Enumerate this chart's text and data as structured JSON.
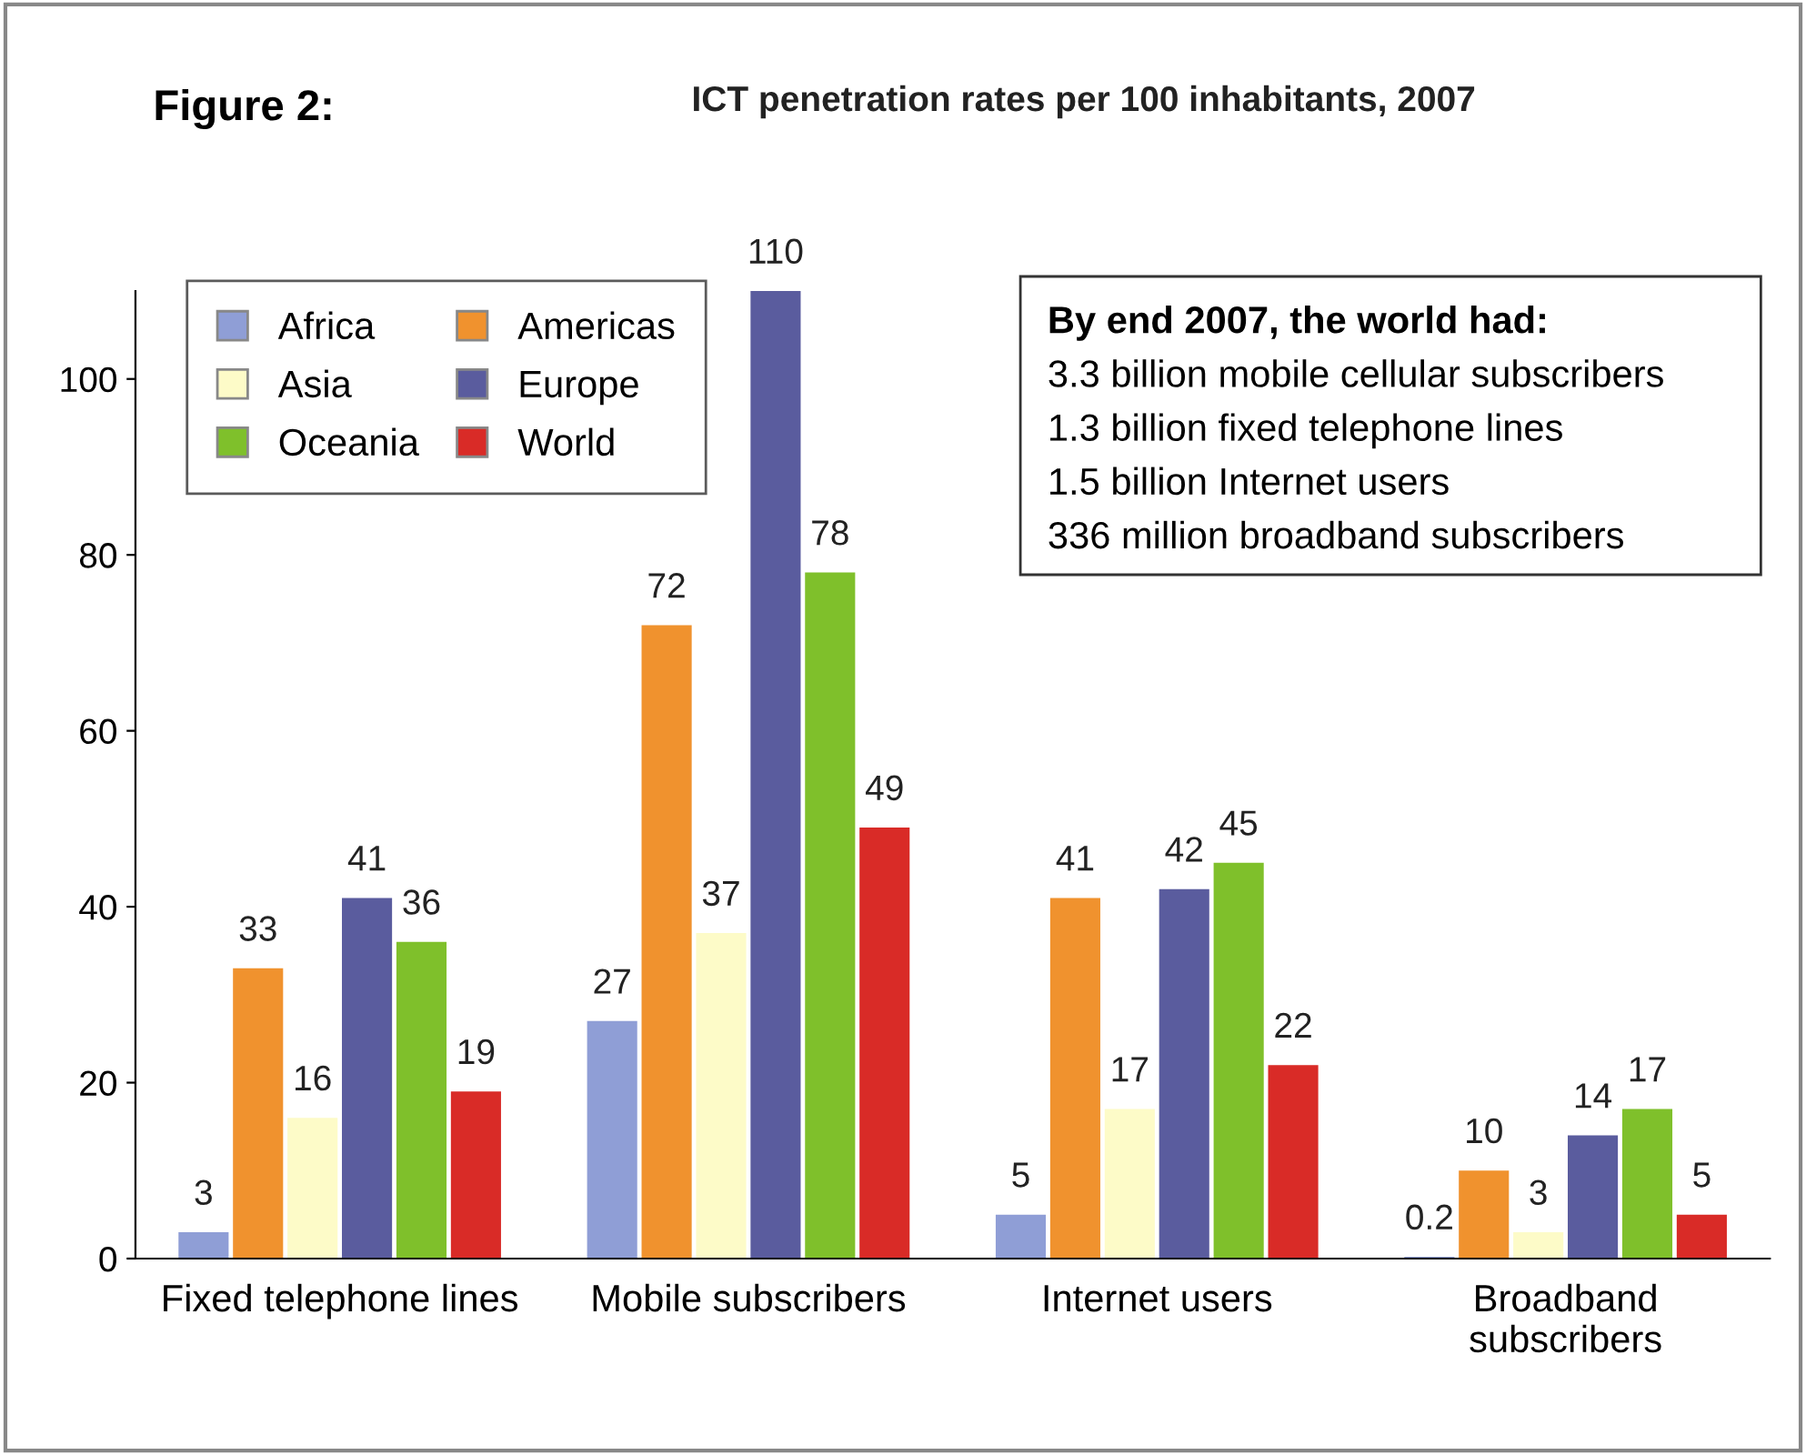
{
  "chart_data": {
    "type": "bar",
    "title": "ICT penetration rates per 100 inhabitants, 2007",
    "categories": [
      "Fixed telephone lines",
      "Mobile subscribers",
      "Internet users",
      "Broadband\nsubscribers"
    ],
    "series": [
      {
        "name": "Africa",
        "color": "#8f9ed6",
        "values": [
          3,
          27,
          5,
          0.2
        ]
      },
      {
        "name": "Americas",
        "color": "#f0922e",
        "values": [
          33,
          72,
          41,
          10
        ]
      },
      {
        "name": "Asia",
        "color": "#fdfbc8",
        "values": [
          16,
          37,
          17,
          3
        ]
      },
      {
        "name": "Europe",
        "color": "#5a5c9e",
        "values": [
          41,
          110,
          42,
          14
        ]
      },
      {
        "name": "Oceania",
        "color": "#7fc02b",
        "values": [
          36,
          78,
          45,
          17
        ]
      },
      {
        "name": "World",
        "color": "#d92b27",
        "values": [
          19,
          49,
          22,
          5
        ]
      }
    ],
    "ylim": [
      0,
      110
    ],
    "yticks": [
      0,
      20,
      40,
      60,
      80,
      100
    ],
    "grid": false,
    "legend": "top left",
    "data_labels": true,
    "annotations": [
      "Figure 2:",
      "By end 2007, the world had:",
      "3.3 billion mobile cellular subscribers",
      "1.3 billion fixed telephone lines",
      "1.5 billion Internet users",
      "336 million broadband subscribers"
    ]
  }
}
